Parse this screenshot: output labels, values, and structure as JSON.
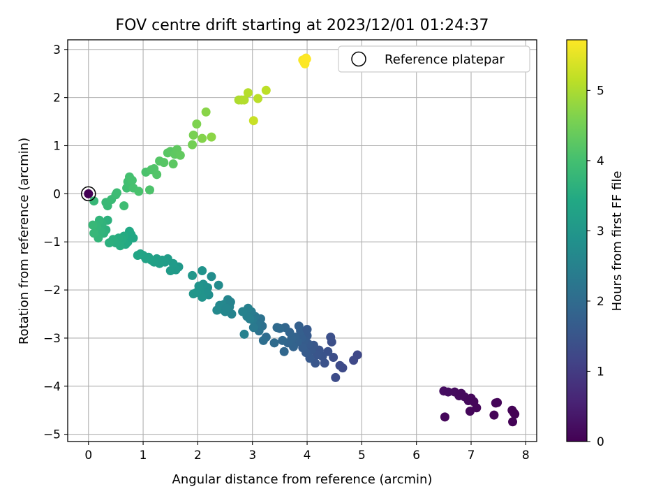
{
  "chart_data": {
    "type": "scatter",
    "title": "FOV centre drift starting at 2023/12/01 01:24:37",
    "xlabel": "Angular distance from reference (arcmin)",
    "ylabel": "Rotation from reference (arcmin)",
    "xlim": [
      -0.38,
      8.2
    ],
    "ylim": [
      -5.15,
      3.2
    ],
    "x_ticks": [
      0,
      1,
      2,
      3,
      4,
      5,
      6,
      7,
      8
    ],
    "y_ticks": [
      -5,
      -4,
      -3,
      -2,
      -1,
      0,
      1,
      2,
      3
    ],
    "grid": true,
    "legend": {
      "placement": "top-right",
      "entries": [
        "Reference platepar"
      ]
    },
    "colorbar": {
      "label": "Hours from first FF file",
      "colormap": "viridis",
      "range": [
        0,
        5.72
      ],
      "ticks": [
        0,
        1,
        2,
        3,
        4,
        5
      ]
    },
    "reference_point": {
      "x": 0,
      "y": 0
    },
    "series": [
      {
        "points": [
          [
            0.0,
            0.0,
            0.0
          ],
          [
            6.52,
            -4.64,
            0.1
          ],
          [
            6.5,
            -4.1,
            0.22
          ],
          [
            6.58,
            -4.12,
            0.2
          ],
          [
            6.7,
            -4.12,
            0.18
          ],
          [
            6.78,
            -4.2,
            0.16
          ],
          [
            6.82,
            -4.15,
            0.15
          ],
          [
            6.88,
            -4.22,
            0.14
          ],
          [
            6.95,
            -4.3,
            0.13
          ],
          [
            7.0,
            -4.25,
            0.12
          ],
          [
            7.05,
            -4.32,
            0.11
          ],
          [
            6.98,
            -4.52,
            0.1
          ],
          [
            7.1,
            -4.45,
            0.09
          ],
          [
            7.45,
            -4.35,
            0.08
          ],
          [
            7.48,
            -4.34,
            0.07
          ],
          [
            7.42,
            -4.6,
            0.06
          ],
          [
            7.75,
            -4.5,
            0.05
          ],
          [
            7.8,
            -4.58,
            0.04
          ],
          [
            7.76,
            -4.74,
            0.03
          ],
          [
            7.78,
            -4.55,
            0.02
          ],
          [
            4.92,
            -3.35,
            1.22
          ],
          [
            4.85,
            -3.46,
            1.25
          ],
          [
            4.65,
            -3.62,
            1.28
          ],
          [
            4.6,
            -3.57,
            1.3
          ],
          [
            4.52,
            -3.82,
            1.32
          ],
          [
            4.48,
            -3.4,
            1.35
          ],
          [
            4.45,
            -3.08,
            1.38
          ],
          [
            4.43,
            -2.98,
            1.4
          ],
          [
            4.38,
            -3.28,
            1.42
          ],
          [
            4.32,
            -3.52,
            1.44
          ],
          [
            4.28,
            -3.38,
            1.46
          ],
          [
            4.22,
            -3.25,
            1.48
          ],
          [
            4.18,
            -3.35,
            1.5
          ],
          [
            4.15,
            -3.52,
            1.52
          ],
          [
            4.12,
            -3.15,
            1.54
          ],
          [
            4.08,
            -3.25,
            1.56
          ],
          [
            4.05,
            -3.42,
            1.58
          ],
          [
            4.02,
            -3.12,
            1.6
          ],
          [
            4.0,
            -2.95,
            1.62
          ],
          [
            3.98,
            -3.3,
            1.64
          ],
          [
            3.95,
            -3.05,
            1.66
          ],
          [
            3.92,
            -3.2,
            1.68
          ],
          [
            3.9,
            -3.0,
            1.7
          ],
          [
            3.88,
            -2.85,
            1.72
          ],
          [
            3.85,
            -2.75,
            1.74
          ],
          [
            3.82,
            -3.08,
            1.76
          ],
          [
            3.78,
            -2.98,
            1.78
          ],
          [
            3.75,
            -3.18,
            1.8
          ],
          [
            3.72,
            -3.0,
            1.82
          ],
          [
            3.68,
            -2.88,
            1.84
          ],
          [
            3.65,
            -3.1,
            1.86
          ],
          [
            3.6,
            -2.78,
            1.88
          ],
          [
            3.58,
            -3.28,
            1.9
          ],
          [
            3.55,
            -3.05,
            1.92
          ],
          [
            3.5,
            -2.8,
            1.94
          ],
          [
            3.45,
            -2.78,
            1.96
          ],
          [
            3.4,
            -3.1,
            1.98
          ],
          [
            4.0,
            -2.82,
            1.6
          ],
          [
            3.25,
            -2.98,
            2.02
          ],
          [
            3.2,
            -3.05,
            2.06
          ],
          [
            3.18,
            -2.75,
            2.1
          ],
          [
            3.15,
            -2.6,
            2.14
          ],
          [
            3.12,
            -2.85,
            2.18
          ],
          [
            3.08,
            -2.72,
            2.22
          ],
          [
            3.05,
            -2.55,
            2.26
          ],
          [
            3.02,
            -2.78,
            2.3
          ],
          [
            3.0,
            -2.62,
            2.34
          ],
          [
            2.98,
            -2.45,
            2.38
          ],
          [
            2.95,
            -2.6,
            2.42
          ],
          [
            2.92,
            -2.38,
            2.46
          ],
          [
            2.9,
            -2.55,
            2.48
          ],
          [
            2.85,
            -2.92,
            2.5
          ],
          [
            2.82,
            -2.45,
            2.52
          ],
          [
            2.62,
            -2.5,
            2.54
          ],
          [
            2.58,
            -2.35,
            2.56
          ],
          [
            2.55,
            -2.2,
            2.58
          ],
          [
            2.5,
            -2.45,
            2.6
          ],
          [
            2.48,
            -2.3,
            2.62
          ],
          [
            2.45,
            -2.4,
            2.64
          ],
          [
            2.4,
            -2.32,
            2.66
          ],
          [
            2.35,
            -2.42,
            2.68
          ],
          [
            2.6,
            -2.25,
            2.54
          ],
          [
            2.52,
            -2.38,
            2.6
          ],
          [
            2.38,
            -1.9,
            2.72
          ],
          [
            2.25,
            -1.72,
            2.76
          ],
          [
            2.2,
            -2.1,
            2.8
          ],
          [
            2.18,
            -1.95,
            2.84
          ],
          [
            2.15,
            -2.05,
            2.86
          ],
          [
            2.1,
            -1.88,
            2.88
          ],
          [
            2.08,
            -2.15,
            2.9
          ],
          [
            2.05,
            -2.0,
            2.92
          ],
          [
            2.02,
            -1.92,
            2.94
          ],
          [
            1.98,
            -2.05,
            2.96
          ],
          [
            1.92,
            -2.08,
            2.98
          ],
          [
            1.9,
            -1.7,
            3.0
          ],
          [
            2.08,
            -1.6,
            2.9
          ],
          [
            1.65,
            -1.52,
            3.04
          ],
          [
            1.6,
            -1.58,
            3.08
          ],
          [
            1.55,
            -1.45,
            3.1
          ],
          [
            1.5,
            -1.6,
            3.12
          ],
          [
            1.45,
            -1.35,
            3.14
          ],
          [
            1.4,
            -1.42,
            3.16
          ],
          [
            1.35,
            -1.38,
            3.18
          ],
          [
            1.3,
            -1.45,
            3.2
          ],
          [
            1.25,
            -1.35,
            3.22
          ],
          [
            1.2,
            -1.42,
            3.24
          ],
          [
            1.15,
            -1.38,
            3.26
          ],
          [
            1.1,
            -1.32,
            3.28
          ],
          [
            1.05,
            -1.35,
            3.3
          ],
          [
            1.0,
            -1.28,
            3.32
          ],
          [
            0.95,
            -1.25,
            3.34
          ],
          [
            0.9,
            -1.28,
            3.36
          ],
          [
            0.82,
            -0.92,
            3.38
          ],
          [
            0.78,
            -0.85,
            3.4
          ],
          [
            0.75,
            -0.78,
            3.42
          ],
          [
            0.72,
            -1.0,
            3.44
          ],
          [
            0.68,
            -1.05,
            3.46
          ],
          [
            0.65,
            -0.88,
            3.48
          ],
          [
            0.62,
            -0.95,
            3.5
          ],
          [
            0.58,
            -1.08,
            3.52
          ],
          [
            0.55,
            -0.92,
            3.54
          ],
          [
            0.5,
            -1.02,
            3.56
          ],
          [
            0.45,
            -0.95,
            3.58
          ],
          [
            0.38,
            -1.02,
            3.6
          ],
          [
            0.35,
            -0.55,
            3.62
          ],
          [
            0.32,
            -0.75,
            3.64
          ],
          [
            0.28,
            -0.82,
            3.66
          ],
          [
            0.25,
            -0.62,
            3.68
          ],
          [
            0.22,
            -0.78,
            3.7
          ],
          [
            0.2,
            -0.55,
            3.72
          ],
          [
            0.18,
            -0.92,
            3.74
          ],
          [
            0.15,
            -0.68,
            3.76
          ],
          [
            0.1,
            -0.82,
            3.78
          ],
          [
            0.08,
            -0.65,
            3.8
          ],
          [
            0.35,
            -0.25,
            3.82
          ],
          [
            0.32,
            -0.18,
            3.84
          ],
          [
            0.42,
            -0.12,
            3.86
          ],
          [
            0.5,
            -0.02,
            3.88
          ],
          [
            0.52,
            0.02,
            3.9
          ],
          [
            0.65,
            -0.25,
            3.92
          ],
          [
            0.1,
            -0.15,
            3.8
          ],
          [
            0.7,
            0.12,
            3.96
          ],
          [
            0.72,
            0.25,
            3.98
          ],
          [
            0.75,
            0.35,
            4.0
          ],
          [
            0.8,
            0.28,
            4.02
          ],
          [
            0.82,
            0.12,
            4.04
          ],
          [
            0.92,
            0.05,
            4.06
          ],
          [
            1.05,
            0.45,
            4.08
          ],
          [
            1.12,
            0.08,
            4.1
          ],
          [
            1.15,
            0.5,
            4.12
          ],
          [
            1.2,
            0.52,
            4.14
          ],
          [
            1.25,
            0.4,
            4.16
          ],
          [
            1.3,
            0.68,
            4.18
          ],
          [
            1.38,
            0.65,
            4.2
          ],
          [
            1.45,
            0.85,
            4.22
          ],
          [
            1.5,
            0.88,
            4.24
          ],
          [
            1.55,
            0.62,
            4.26
          ],
          [
            1.58,
            0.82,
            4.28
          ],
          [
            1.62,
            0.92,
            4.3
          ],
          [
            1.68,
            0.8,
            4.32
          ],
          [
            1.9,
            1.02,
            4.5
          ],
          [
            1.92,
            1.22,
            4.55
          ],
          [
            1.98,
            1.45,
            4.6
          ],
          [
            2.08,
            1.15,
            4.65
          ],
          [
            2.15,
            1.7,
            4.7
          ],
          [
            2.25,
            1.18,
            4.72
          ],
          [
            2.75,
            1.95,
            5.0
          ],
          [
            2.8,
            1.95,
            5.04
          ],
          [
            2.85,
            1.95,
            5.06
          ],
          [
            2.92,
            2.1,
            5.08
          ],
          [
            3.1,
            1.98,
            5.12
          ],
          [
            3.25,
            2.15,
            5.14
          ],
          [
            3.02,
            1.52,
            5.25
          ],
          [
            3.92,
            2.78,
            5.64
          ],
          [
            3.95,
            2.72,
            5.66
          ],
          [
            3.98,
            2.82,
            5.68
          ],
          [
            3.96,
            2.7,
            5.69
          ],
          [
            3.94,
            2.75,
            5.7
          ],
          [
            3.99,
            2.8,
            5.72
          ]
        ]
      }
    ]
  }
}
